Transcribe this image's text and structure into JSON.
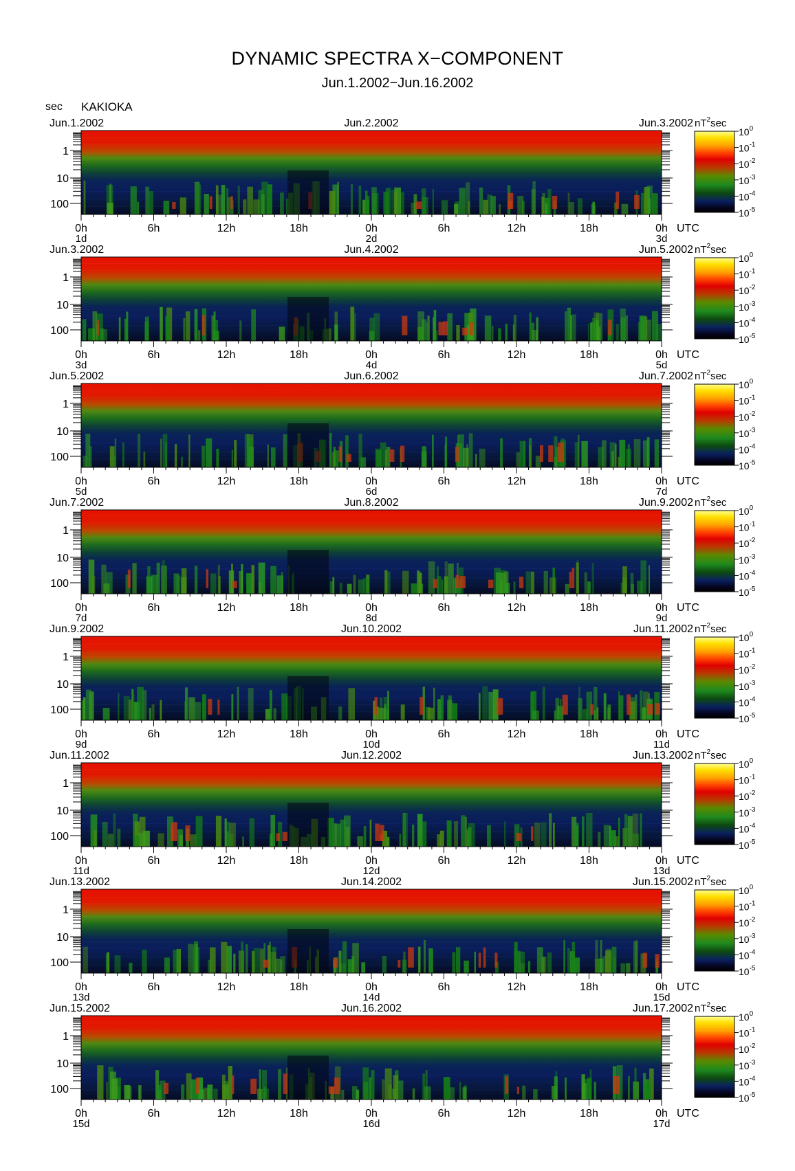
{
  "header": {
    "title": "DYNAMIC SPECTRA X−COMPONENT",
    "subtitle": "Jun.1.2002−Jun.16.2002",
    "y_unit": "sec",
    "station": "KAKIOKA"
  },
  "chart_data": {
    "type": "heatmap",
    "y_scale": "log",
    "y_ticks": [
      "1",
      "10",
      "100"
    ],
    "x_ticks": [
      "0h",
      "6h",
      "12h",
      "18h",
      "0h",
      "6h",
      "12h",
      "18h",
      "0h"
    ],
    "x_unit": "UTC",
    "colorbar": {
      "unit_prefix": "nT",
      "unit_exp": "2",
      "unit_suffix": "sec",
      "scale": "log",
      "levels": [
        {
          "base": "10",
          "exp": "0"
        },
        {
          "base": "10",
          "exp": "-1"
        },
        {
          "base": "10",
          "exp": "-2"
        },
        {
          "base": "10",
          "exp": "-3"
        },
        {
          "base": "10",
          "exp": "-4"
        },
        {
          "base": "10",
          "exp": "-5"
        }
      ],
      "colors": [
        "#ffff80",
        "#ffd400",
        "#ff8c00",
        "#ff2a00",
        "#e00000",
        "#cc3300",
        "#7a7a00",
        "#1f8a1f",
        "#0f5a0f",
        "#0c2a6a",
        "#050520",
        "#000000"
      ]
    },
    "panels": [
      {
        "date_left": "Jun.1.2002",
        "date_mid": "Jun.2.2002",
        "date_right": "Jun.3.2002",
        "day_left": "1d",
        "day_mid": "2d",
        "day_right": "3d"
      },
      {
        "date_left": "Jun.3.2002",
        "date_mid": "Jun.4.2002",
        "date_right": "Jun.5.2002",
        "day_left": "3d",
        "day_mid": "4d",
        "day_right": "5d"
      },
      {
        "date_left": "Jun.5.2002",
        "date_mid": "Jun.6.2002",
        "date_right": "Jun.7.2002",
        "day_left": "5d",
        "day_mid": "6d",
        "day_right": "7d"
      },
      {
        "date_left": "Jun.7.2002",
        "date_mid": "Jun.8.2002",
        "date_right": "Jun.9.2002",
        "day_left": "7d",
        "day_mid": "8d",
        "day_right": "9d"
      },
      {
        "date_left": "Jun.9.2002",
        "date_mid": "Jun.10.2002",
        "date_right": "Jun.11.2002",
        "day_left": "9d",
        "day_mid": "10d",
        "day_right": "11d"
      },
      {
        "date_left": "Jun.11.2002",
        "date_mid": "Jun.12.2002",
        "date_right": "Jun.13.2002",
        "day_left": "11d",
        "day_mid": "12d",
        "day_right": "13d"
      },
      {
        "date_left": "Jun.13.2002",
        "date_mid": "Jun.14.2002",
        "date_right": "Jun.15.2002",
        "day_left": "13d",
        "day_mid": "14d",
        "day_right": "15d"
      },
      {
        "date_left": "Jun.15.2002",
        "date_mid": "Jun.16.2002",
        "date_right": "Jun.17.2002",
        "day_left": "15d",
        "day_mid": "16d",
        "day_right": "17d"
      }
    ]
  }
}
